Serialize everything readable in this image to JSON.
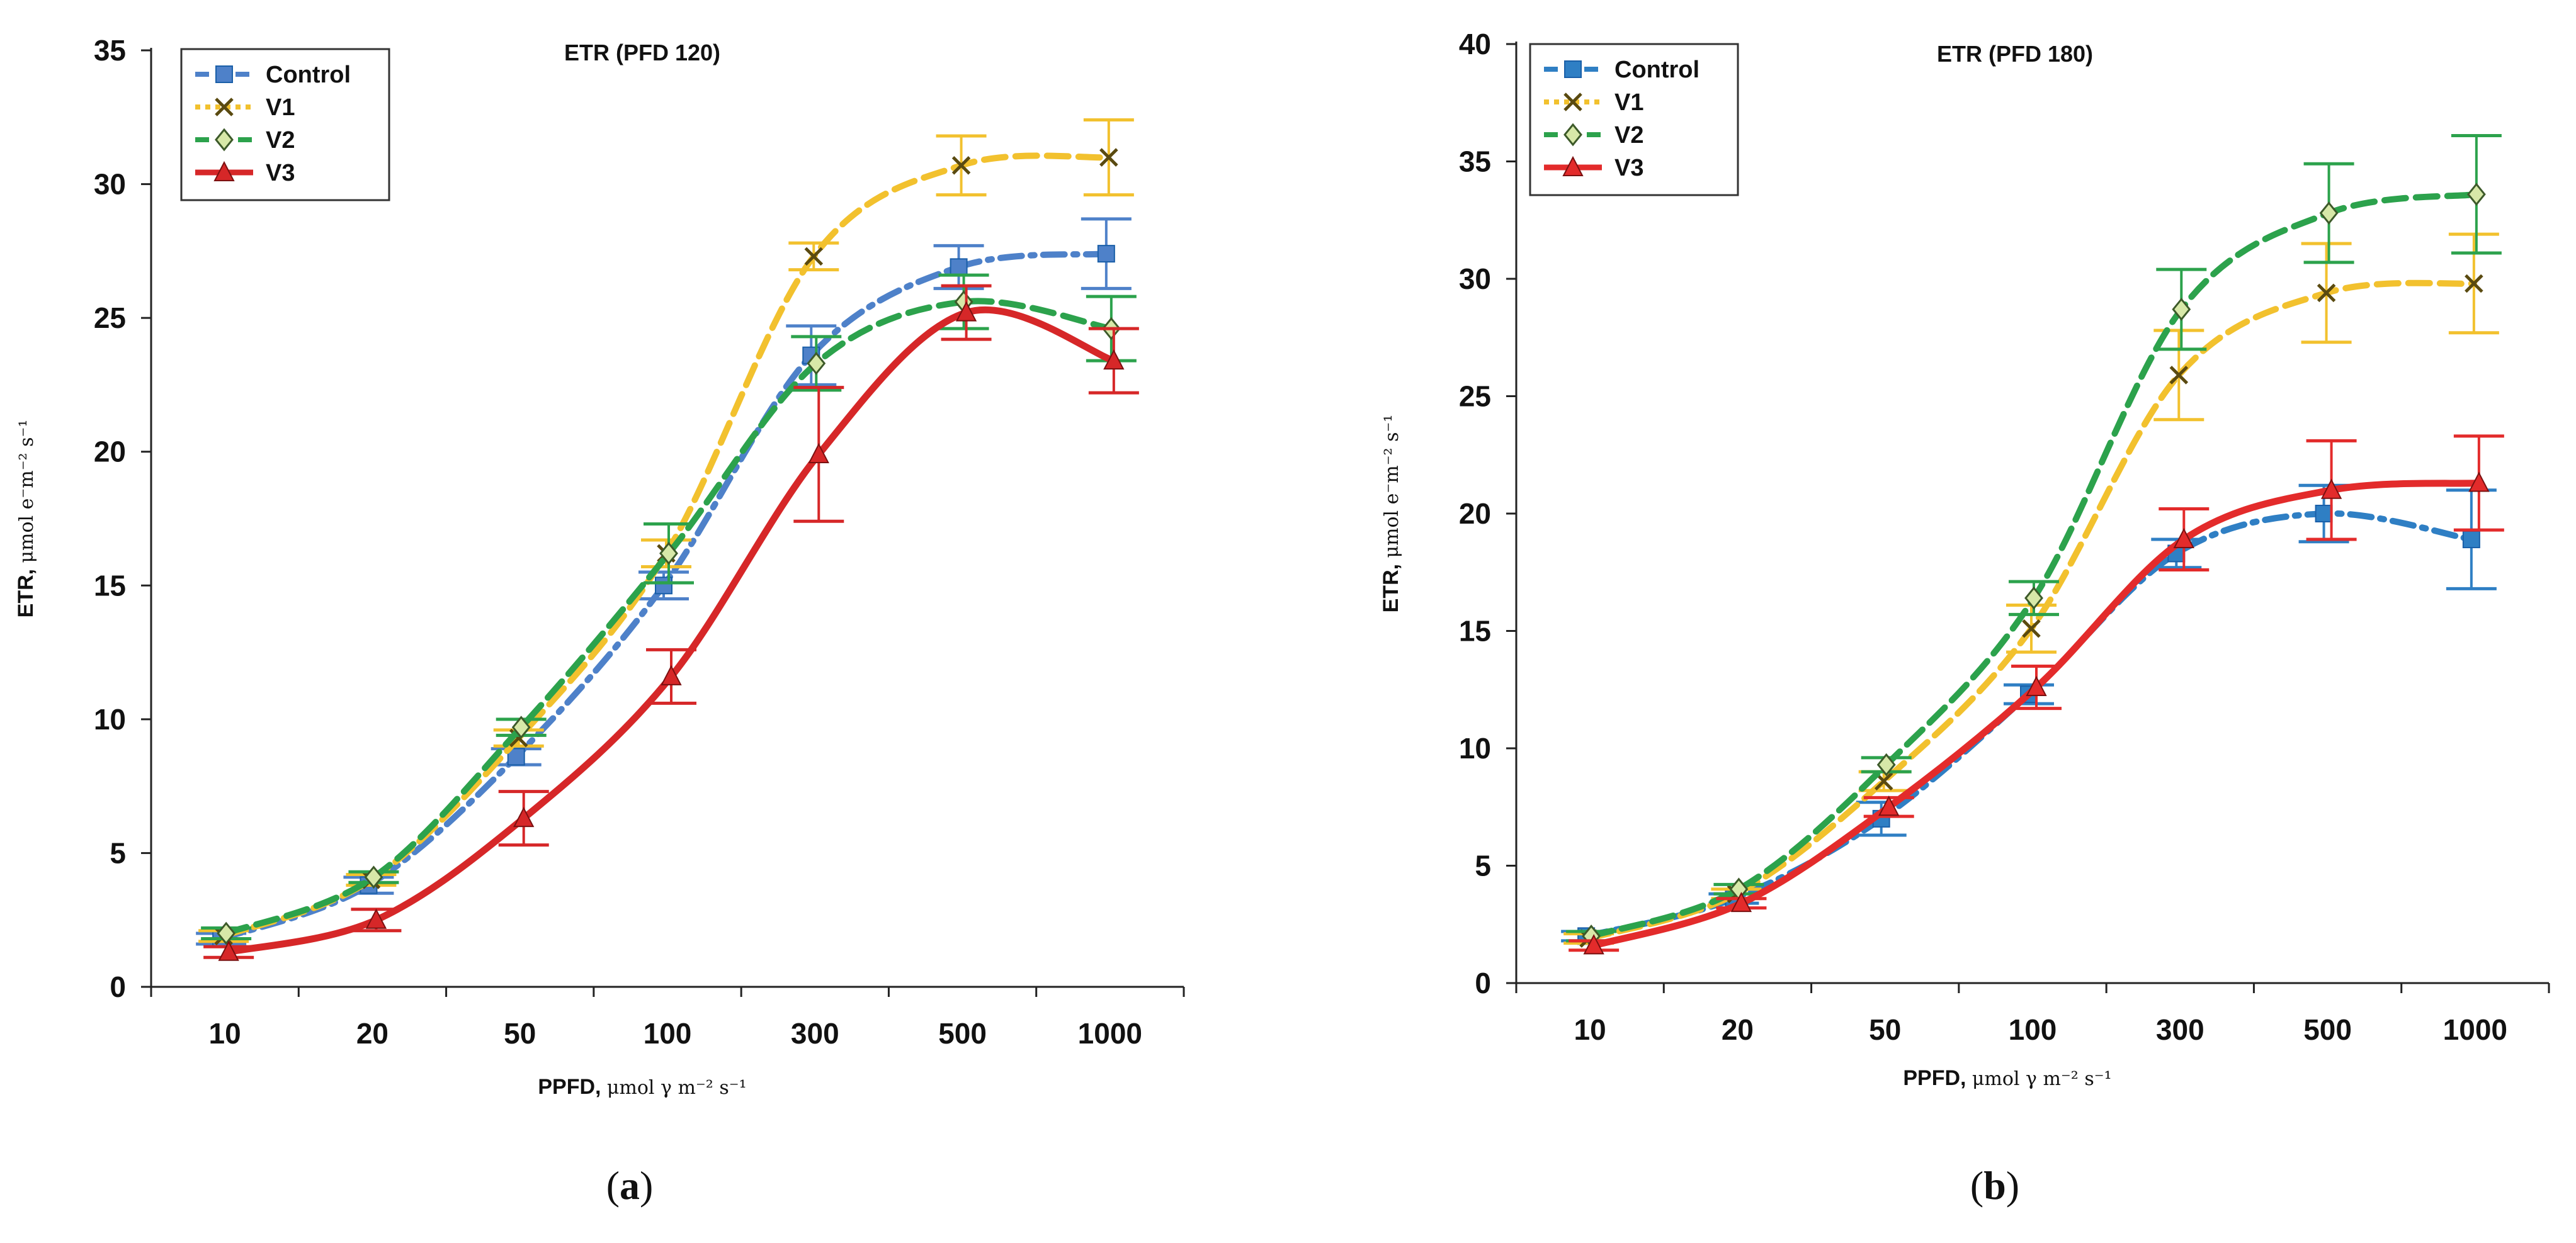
{
  "chart_data": [
    {
      "type": "line",
      "title": "ETR (PFD 120)",
      "panel_label": "a",
      "xlabel": "PPFD,",
      "xlabel_unit": "μmol γ m⁻² s⁻¹",
      "ylabel": "ETR,",
      "ylabel_unit": "μmol e⁻m⁻² s⁻¹",
      "categories": [
        "10",
        "20",
        "50",
        "100",
        "300",
        "500",
        "1000"
      ],
      "ylim": [
        0,
        35
      ],
      "yticks": [
        0,
        5,
        10,
        15,
        20,
        25,
        30,
        35
      ],
      "legend": "top-left",
      "grid": false,
      "series": [
        {
          "name": "Control",
          "color": "#4e81c9",
          "style": "dash-dot",
          "marker": "square",
          "values": [
            1.8,
            3.8,
            8.6,
            15.0,
            23.6,
            26.9,
            27.4
          ],
          "errors": [
            0.2,
            0.3,
            0.3,
            0.5,
            1.1,
            0.8,
            1.3
          ]
        },
        {
          "name": "V1",
          "color": "#f2c12e",
          "style": "dashed",
          "marker": "x",
          "values": [
            1.9,
            4.0,
            9.3,
            16.2,
            27.3,
            30.7,
            31.0
          ],
          "errors": [
            0.2,
            0.2,
            0.3,
            0.5,
            0.5,
            1.1,
            1.4
          ]
        },
        {
          "name": "V2",
          "color": "#2ca24c",
          "style": "dashed",
          "marker": "diamond",
          "values": [
            2.0,
            4.1,
            9.7,
            16.2,
            23.3,
            25.6,
            24.6
          ],
          "errors": [
            0.2,
            0.2,
            0.3,
            1.1,
            1.0,
            1.0,
            1.2
          ]
        },
        {
          "name": "V3",
          "color": "#d62728",
          "style": "solid",
          "marker": "triangle",
          "values": [
            1.3,
            2.5,
            6.3,
            11.6,
            19.9,
            25.2,
            23.4
          ],
          "errors": [
            0.2,
            0.4,
            1.0,
            1.0,
            2.5,
            1.0,
            1.2
          ]
        }
      ]
    },
    {
      "type": "line",
      "title": "ETR (PFD 180)",
      "panel_label": "b",
      "xlabel": "PPFD,",
      "xlabel_unit": "μmol γ m⁻² s⁻¹",
      "ylabel": "ETR,",
      "ylabel_unit": "μmol e⁻m⁻² s⁻¹",
      "categories": [
        "10",
        "20",
        "50",
        "100",
        "300",
        "500",
        "1000"
      ],
      "ylim": [
        0,
        40
      ],
      "yticks": [
        0,
        5,
        10,
        15,
        20,
        25,
        30,
        35,
        40
      ],
      "legend": "top-left",
      "grid": false,
      "series": [
        {
          "name": "Control",
          "color": "#2f7fc4",
          "style": "dash-dot",
          "marker": "square",
          "values": [
            2.0,
            3.6,
            7.0,
            12.3,
            18.3,
            20.0,
            18.9
          ],
          "errors": [
            0.2,
            0.2,
            0.7,
            0.4,
            0.6,
            1.2,
            2.1
          ]
        },
        {
          "name": "V1",
          "color": "#f2c12e",
          "style": "dashed",
          "marker": "x",
          "values": [
            1.9,
            3.8,
            8.6,
            15.1,
            25.9,
            29.4,
            29.8
          ],
          "errors": [
            0.2,
            0.2,
            0.4,
            1.0,
            1.9,
            2.1,
            2.1
          ]
        },
        {
          "name": "V2",
          "color": "#2ca24c",
          "style": "dashed",
          "marker": "diamond",
          "values": [
            2.0,
            4.0,
            9.3,
            16.4,
            28.7,
            32.8,
            33.6
          ],
          "errors": [
            0.2,
            0.2,
            0.3,
            0.7,
            1.7,
            2.1,
            2.5
          ]
        },
        {
          "name": "V3",
          "color": "#e32b2b",
          "style": "solid",
          "marker": "triangle",
          "values": [
            1.6,
            3.4,
            7.5,
            12.6,
            18.9,
            21.0,
            21.3
          ],
          "errors": [
            0.2,
            0.2,
            0.4,
            0.9,
            1.3,
            2.1,
            2.0
          ]
        }
      ]
    }
  ]
}
